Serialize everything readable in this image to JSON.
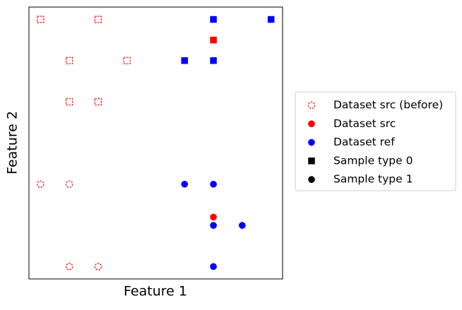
{
  "chart_data": {
    "type": "scatter",
    "x_label": "Feature 1",
    "y_label": "Feature 2",
    "xlim": [
      -0.4,
      8.4
    ],
    "ylim": [
      -0.3,
      6.3
    ],
    "xticks": [],
    "yticks": [],
    "legend": "right",
    "series": [
      {
        "name": "Dataset src (before)",
        "color": "#ff0000",
        "style": "dashed-hollow",
        "x": [
          0,
          2,
          1,
          3,
          1,
          2,
          0,
          1,
          1,
          2
        ],
        "y": [
          6,
          6,
          5,
          5,
          4,
          4,
          2,
          2,
          0,
          0
        ],
        "types": [
          0,
          0,
          0,
          0,
          0,
          0,
          1,
          1,
          1,
          1
        ]
      },
      {
        "name": "Dataset src",
        "color": "#ff0000",
        "style": "filled",
        "x": [
          6,
          6
        ],
        "y": [
          5.5,
          1.2
        ],
        "types": [
          0,
          1
        ]
      },
      {
        "name": "Dataset ref",
        "color": "#0000ff",
        "style": "filled",
        "x": [
          6,
          8,
          5,
          6,
          5,
          6,
          6,
          7,
          6
        ],
        "y": [
          6,
          6,
          5,
          5,
          2,
          2,
          1,
          1,
          0
        ],
        "types": [
          0,
          0,
          0,
          0,
          1,
          1,
          1,
          1,
          1
        ]
      }
    ],
    "sample_types": [
      {
        "name": "Sample type 0",
        "color": "#000000",
        "marker": "square"
      },
      {
        "name": "Sample type 1",
        "color": "#000000",
        "marker": "circle"
      }
    ]
  }
}
